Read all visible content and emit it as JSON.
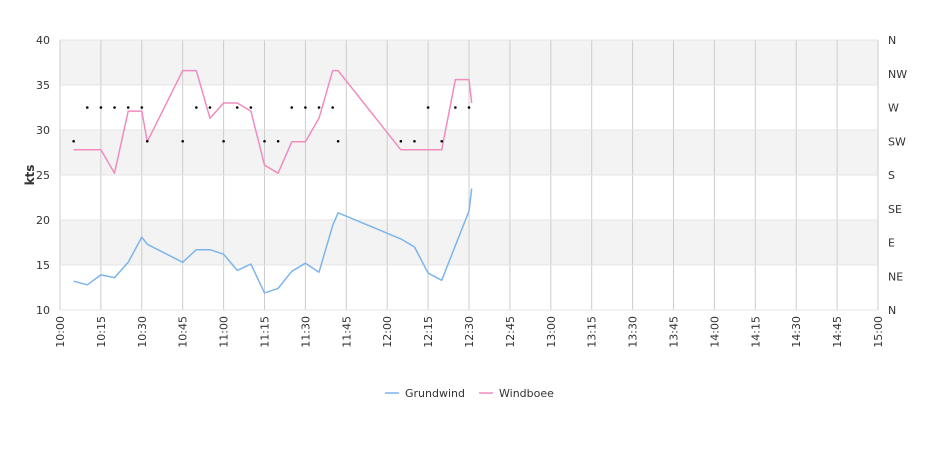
{
  "chart_data": {
    "type": "line",
    "ylabel": "kts",
    "ylim": [
      10,
      40
    ],
    "y_ticks": [
      10,
      15,
      20,
      25,
      30,
      35,
      40
    ],
    "x_range": [
      "10:00",
      "15:00"
    ],
    "x_ticks": [
      "10:00",
      "10:15",
      "10:30",
      "10:45",
      "11:00",
      "11:15",
      "11:30",
      "11:45",
      "12:00",
      "12:15",
      "12:30",
      "12:45",
      "13:00",
      "13:15",
      "13:30",
      "13:45",
      "14:00",
      "14:15",
      "14:30",
      "14:45",
      "15:00"
    ],
    "direction_ticks": [
      "N",
      "NE",
      "E",
      "SE",
      "S",
      "SW",
      "W",
      "NW",
      "N"
    ],
    "grid": true,
    "alternating_bands": true,
    "legend_position": "bottom-center",
    "series": [
      {
        "name": "Grundwind",
        "color": "#7cb5ec",
        "points": [
          [
            "10:05",
            13.2
          ],
          [
            "10:10",
            12.8
          ],
          [
            "10:15",
            13.9
          ],
          [
            "10:20",
            13.6
          ],
          [
            "10:25",
            15.3
          ],
          [
            "10:30",
            18.1
          ],
          [
            "10:32",
            17.3
          ],
          [
            "10:45",
            15.3
          ],
          [
            "10:50",
            16.7
          ],
          [
            "10:55",
            16.7
          ],
          [
            "11:00",
            16.2
          ],
          [
            "11:05",
            14.4
          ],
          [
            "11:10",
            15.1
          ],
          [
            "11:15",
            11.9
          ],
          [
            "11:20",
            12.4
          ],
          [
            "11:25",
            14.3
          ],
          [
            "11:30",
            15.2
          ],
          [
            "11:35",
            14.2
          ],
          [
            "11:40",
            19.4
          ],
          [
            "11:42",
            20.8
          ],
          [
            "12:05",
            17.9
          ],
          [
            "12:10",
            17.0
          ],
          [
            "12:15",
            14.1
          ],
          [
            "12:20",
            13.3
          ],
          [
            "12:30",
            21.0
          ],
          [
            "12:31",
            23.5
          ]
        ]
      },
      {
        "name": "Windboee",
        "color": "#f08cbe",
        "points": [
          [
            "10:05",
            27.8
          ],
          [
            "10:10",
            27.8
          ],
          [
            "10:15",
            27.8
          ],
          [
            "10:20",
            25.2
          ],
          [
            "10:25",
            32.1
          ],
          [
            "10:30",
            32.1
          ],
          [
            "10:32",
            28.7
          ],
          [
            "10:45",
            36.6
          ],
          [
            "10:50",
            36.6
          ],
          [
            "10:55",
            31.3
          ],
          [
            "11:00",
            33.0
          ],
          [
            "11:05",
            33.0
          ],
          [
            "11:10",
            32.1
          ],
          [
            "11:15",
            26.1
          ],
          [
            "11:20",
            25.2
          ],
          [
            "11:25",
            28.7
          ],
          [
            "11:30",
            28.7
          ],
          [
            "11:35",
            31.3
          ],
          [
            "11:40",
            36.6
          ],
          [
            "11:42",
            36.6
          ],
          [
            "12:05",
            27.8
          ],
          [
            "12:10",
            27.8
          ],
          [
            "12:15",
            27.8
          ],
          [
            "12:20",
            27.8
          ],
          [
            "12:25",
            35.6
          ],
          [
            "12:30",
            35.6
          ],
          [
            "12:31",
            33.0
          ]
        ]
      }
    ],
    "direction_points": [
      [
        "10:05",
        "SW"
      ],
      [
        "10:10",
        "W"
      ],
      [
        "10:15",
        "W"
      ],
      [
        "10:20",
        "W"
      ],
      [
        "10:25",
        "W"
      ],
      [
        "10:30",
        "W"
      ],
      [
        "10:32",
        "SW"
      ],
      [
        "10:45",
        "SW"
      ],
      [
        "10:50",
        "W"
      ],
      [
        "10:55",
        "W"
      ],
      [
        "11:00",
        "SW"
      ],
      [
        "11:05",
        "W"
      ],
      [
        "11:10",
        "W"
      ],
      [
        "11:15",
        "SW"
      ],
      [
        "11:20",
        "SW"
      ],
      [
        "11:25",
        "W"
      ],
      [
        "11:30",
        "W"
      ],
      [
        "11:35",
        "W"
      ],
      [
        "11:40",
        "W"
      ],
      [
        "11:42",
        "SW"
      ],
      [
        "12:05",
        "SW"
      ],
      [
        "12:10",
        "SW"
      ],
      [
        "12:15",
        "W"
      ],
      [
        "12:20",
        "SW"
      ],
      [
        "12:25",
        "W"
      ],
      [
        "12:30",
        "W"
      ]
    ]
  }
}
